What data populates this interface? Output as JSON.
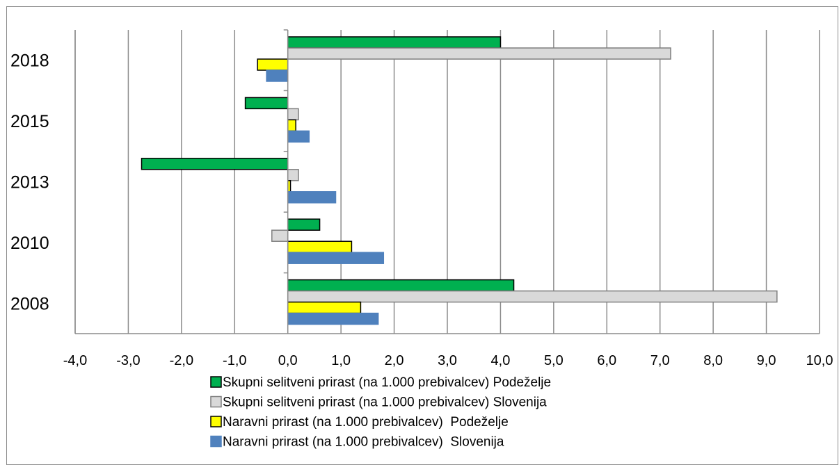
{
  "chart_data": {
    "type": "bar",
    "orientation": "horizontal",
    "categories": [
      "2018",
      "2015",
      "2013",
      "2010",
      "2008"
    ],
    "series": [
      {
        "name": "Skupni selitveni prirast (na 1.000 prebivalcev) Podeželje",
        "color": "#00b050",
        "outline": "#000000",
        "values": [
          4.0,
          -0.8,
          -2.75,
          0.6,
          4.25
        ]
      },
      {
        "name": "Skupni selitveni prirast (na 1.000 prebivalcev) Slovenija",
        "color": "#d9d9d9",
        "outline": "#7f7f7f",
        "values": [
          7.2,
          0.2,
          0.2,
          -0.3,
          9.2
        ]
      },
      {
        "name": "Naravni prirast (na 1.000 prebivalcev)  Podeželje",
        "color": "#ffff00",
        "outline": "#000000",
        "values": [
          -0.57,
          0.15,
          0.05,
          1.2,
          1.37
        ]
      },
      {
        "name": "Naravni prirast (na 1.000 prebivalcev)  Slovenija",
        "color": "#4f81bd",
        "outline": "#4f81bd",
        "values": [
          -0.4,
          0.4,
          0.9,
          1.8,
          1.7
        ]
      }
    ],
    "xlim": [
      -4,
      10
    ],
    "xticks": [
      "-4,0",
      "-3,0",
      "-2,0",
      "-1,0",
      "0,0",
      "1,0",
      "2,0",
      "3,0",
      "4,0",
      "5,0",
      "6,0",
      "7,0",
      "8,0",
      "9,0",
      "10,0"
    ],
    "grid": "vertical",
    "legend_position": "bottom"
  }
}
